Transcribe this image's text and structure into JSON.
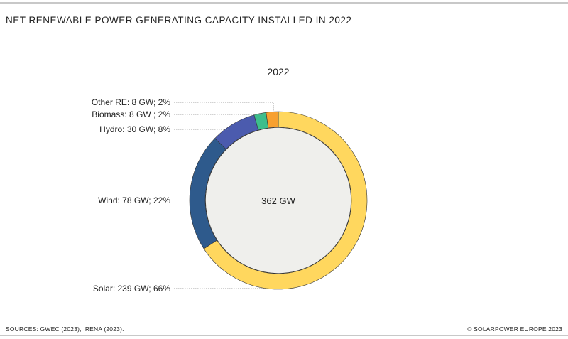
{
  "title": "NET RENEWABLE POWER GENERATING CAPACITY INSTALLED IN 2022",
  "footer": {
    "sources": "SOURCES: GWEC (2023), IRENA (2023).",
    "copyright": "© SOLARPOWER EUROPE 2023"
  },
  "chart_data": {
    "type": "pie",
    "donut": true,
    "title": "2022",
    "center_label": "362 GW",
    "slices": [
      {
        "name": "Solar",
        "value": 239,
        "percent": 66,
        "label": "Solar: 239 GW; 66%",
        "color": "#FFD75E"
      },
      {
        "name": "Wind",
        "value": 78,
        "percent": 22,
        "label": "Wind: 78 GW; 22%",
        "color": "#2E5A8C"
      },
      {
        "name": "Hydro",
        "value": 30,
        "percent": 8,
        "label": "Hydro: 30 GW; 8%",
        "color": "#4B5BAE"
      },
      {
        "name": "Biomass",
        "value": 8,
        "percent": 2,
        "label": "Biomass: 8 GW ; 2%",
        "color": "#3DBE8C"
      },
      {
        "name": "Other RE",
        "value": 8,
        "percent": 2,
        "label": "Other RE: 8 GW; 2%",
        "color": "#F7A030"
      }
    ],
    "center_color": "#EFEFEC"
  }
}
